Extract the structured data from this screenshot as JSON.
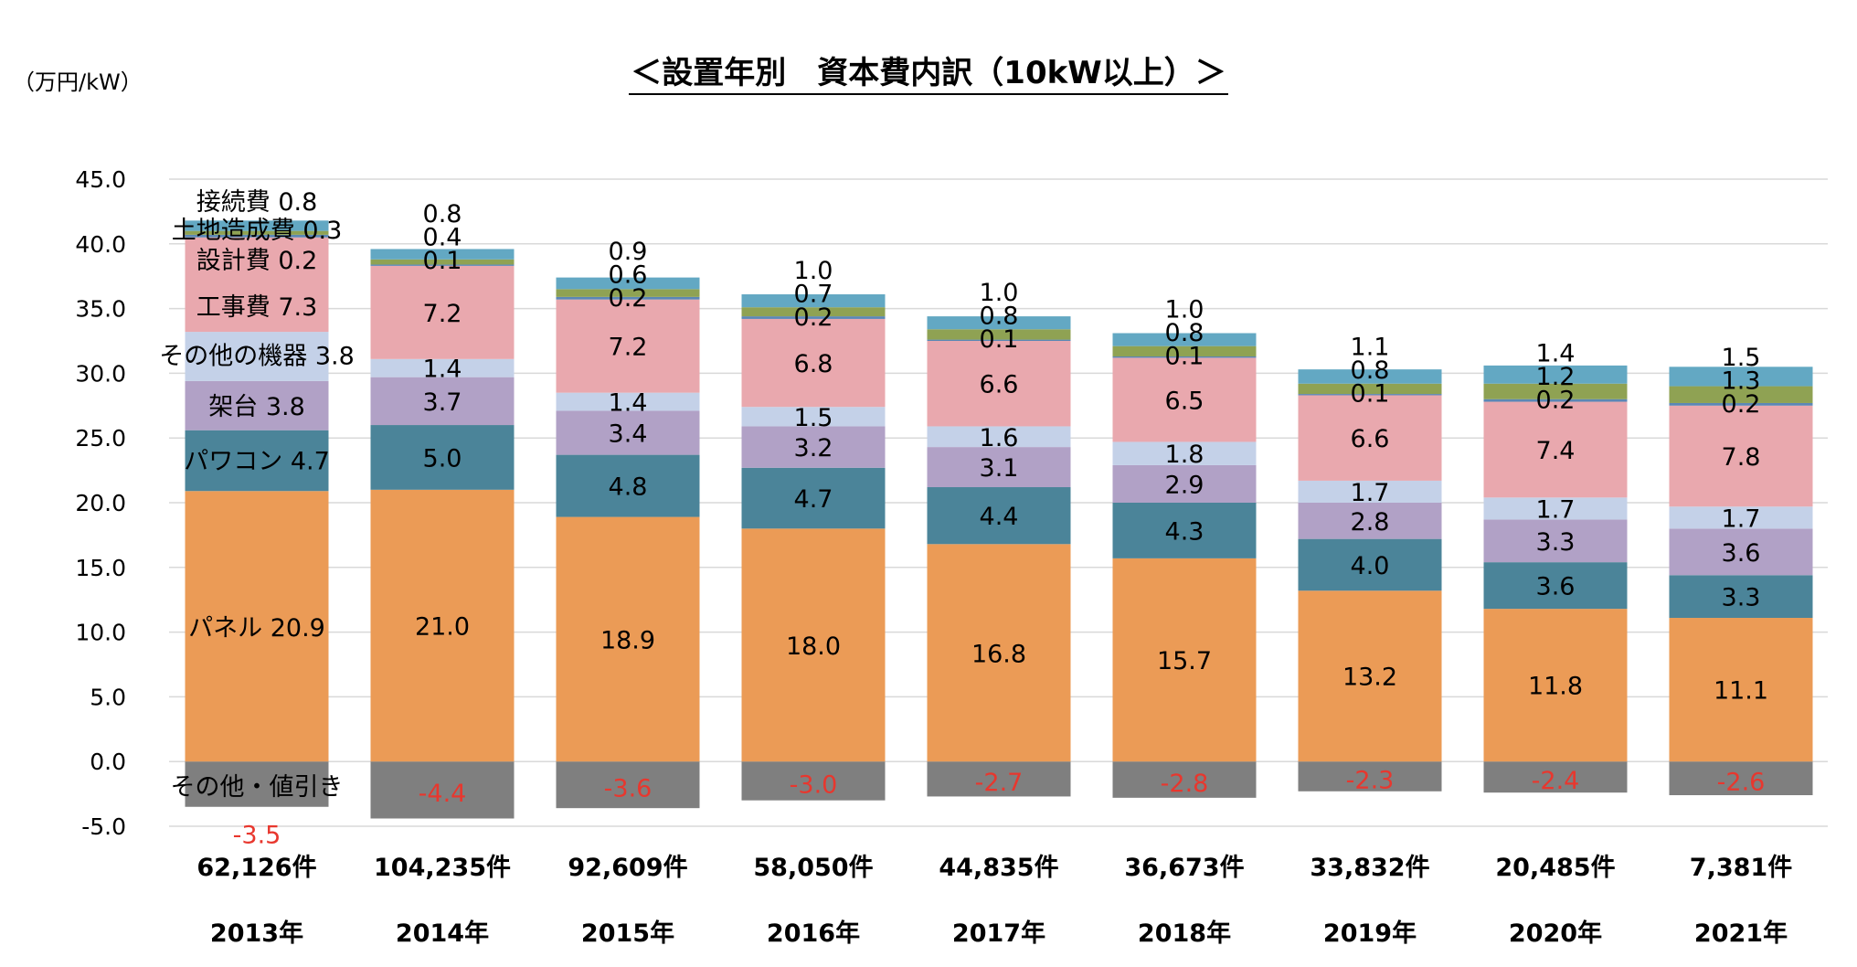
{
  "chart_data": {
    "type": "bar",
    "stacked": true,
    "title": "＜設置年別　資本費内訳（10kW以上）＞",
    "ylabel": "（万円/kW）",
    "ylim": [
      -5,
      45
    ],
    "yticks": [
      "45.0",
      "40.0",
      "35.0",
      "30.0",
      "25.0",
      "20.0",
      "15.0",
      "10.0",
      "5.0",
      "0.0",
      "-5.0"
    ],
    "grid": true,
    "categories": [
      "2013年",
      "2014年",
      "2015年",
      "2016年",
      "2017年",
      "2018年",
      "2019年",
      "2020年",
      "2021年"
    ],
    "counts": [
      "62,126件",
      "104,235件",
      "92,609件",
      "58,050件",
      "44,835件",
      "36,673件",
      "33,832件",
      "20,485件",
      "7,381件"
    ],
    "series": [
      {
        "name": "パネル",
        "color": "#eb9b56",
        "values": [
          20.9,
          21.0,
          18.9,
          18.0,
          16.8,
          15.7,
          13.2,
          11.8,
          11.1
        ],
        "labels": [
          "パネル 20.9",
          "21.0",
          "18.9",
          "18.0",
          "16.8",
          "15.7",
          "13.2",
          "11.8",
          "11.1"
        ]
      },
      {
        "name": "パワコン",
        "color": "#4b8499",
        "values": [
          4.7,
          5.0,
          4.8,
          4.7,
          4.4,
          4.3,
          4.0,
          3.6,
          3.3
        ],
        "labels": [
          "パワコン 4.7",
          "5.0",
          "4.8",
          "4.7",
          "4.4",
          "4.3",
          "4.0",
          "3.6",
          "3.3"
        ]
      },
      {
        "name": "架台",
        "color": "#b1a1c6",
        "values": [
          3.8,
          3.7,
          3.4,
          3.2,
          3.1,
          2.9,
          2.8,
          3.3,
          3.6
        ],
        "labels": [
          "架台 3.8",
          "3.7",
          "3.4",
          "3.2",
          "3.1",
          "2.9",
          "2.8",
          "3.3",
          "3.6"
        ]
      },
      {
        "name": "その他の機器",
        "color": "#c4d1e8",
        "values": [
          3.8,
          1.4,
          1.4,
          1.5,
          1.6,
          1.8,
          1.7,
          1.7,
          1.7
        ],
        "labels": [
          "その他の機器 3.8",
          "1.4",
          "1.4",
          "1.5",
          "1.6",
          "1.8",
          "1.7",
          "1.7",
          "1.7"
        ]
      },
      {
        "name": "工事費",
        "color": "#e9a8ae",
        "values": [
          7.3,
          7.2,
          7.2,
          6.8,
          6.6,
          6.5,
          6.6,
          7.4,
          7.8
        ],
        "labels": [
          "工事費 7.3",
          "7.2",
          "7.2",
          "6.8",
          "6.6",
          "6.5",
          "6.6",
          "7.4",
          "7.8"
        ]
      },
      {
        "name": "設計費",
        "color": "#5b87b5",
        "values": [
          0.2,
          0.1,
          0.2,
          0.2,
          0.1,
          0.1,
          0.1,
          0.2,
          0.2
        ],
        "labels": [
          "設計費 0.2",
          "0.1",
          "0.2",
          "0.2",
          "0.1",
          "0.1",
          "0.1",
          "0.2",
          "0.2"
        ]
      },
      {
        "name": "土地造成費",
        "color": "#8fa253",
        "values": [
          0.3,
          0.4,
          0.6,
          0.7,
          0.8,
          0.8,
          0.8,
          1.2,
          1.3
        ],
        "labels": [
          "土地造成費 0.3",
          "0.4",
          "0.6",
          "0.7",
          "0.8",
          "0.8",
          "0.8",
          "1.2",
          "1.3"
        ]
      },
      {
        "name": "接続費",
        "color": "#63a8c3",
        "values": [
          0.8,
          0.8,
          0.9,
          1.0,
          1.0,
          1.0,
          1.1,
          1.4,
          1.5
        ],
        "labels": [
          "接続費 0.8",
          "0.8",
          "0.9",
          "1.0",
          "1.0",
          "1.0",
          "1.1",
          "1.4",
          "1.5"
        ]
      }
    ],
    "negative": {
      "name": "その他・値引き",
      "color": "#7f7f7f",
      "label_color": "#e8372e",
      "values": [
        -3.5,
        -4.4,
        -3.6,
        -3.0,
        -2.7,
        -2.8,
        -2.3,
        -2.4,
        -2.6
      ],
      "labels": [
        "-3.5",
        "-4.4",
        "-3.6",
        "-3.0",
        "-2.7",
        "-2.8",
        "-2.3",
        "-2.4",
        "-2.6"
      ]
    }
  }
}
